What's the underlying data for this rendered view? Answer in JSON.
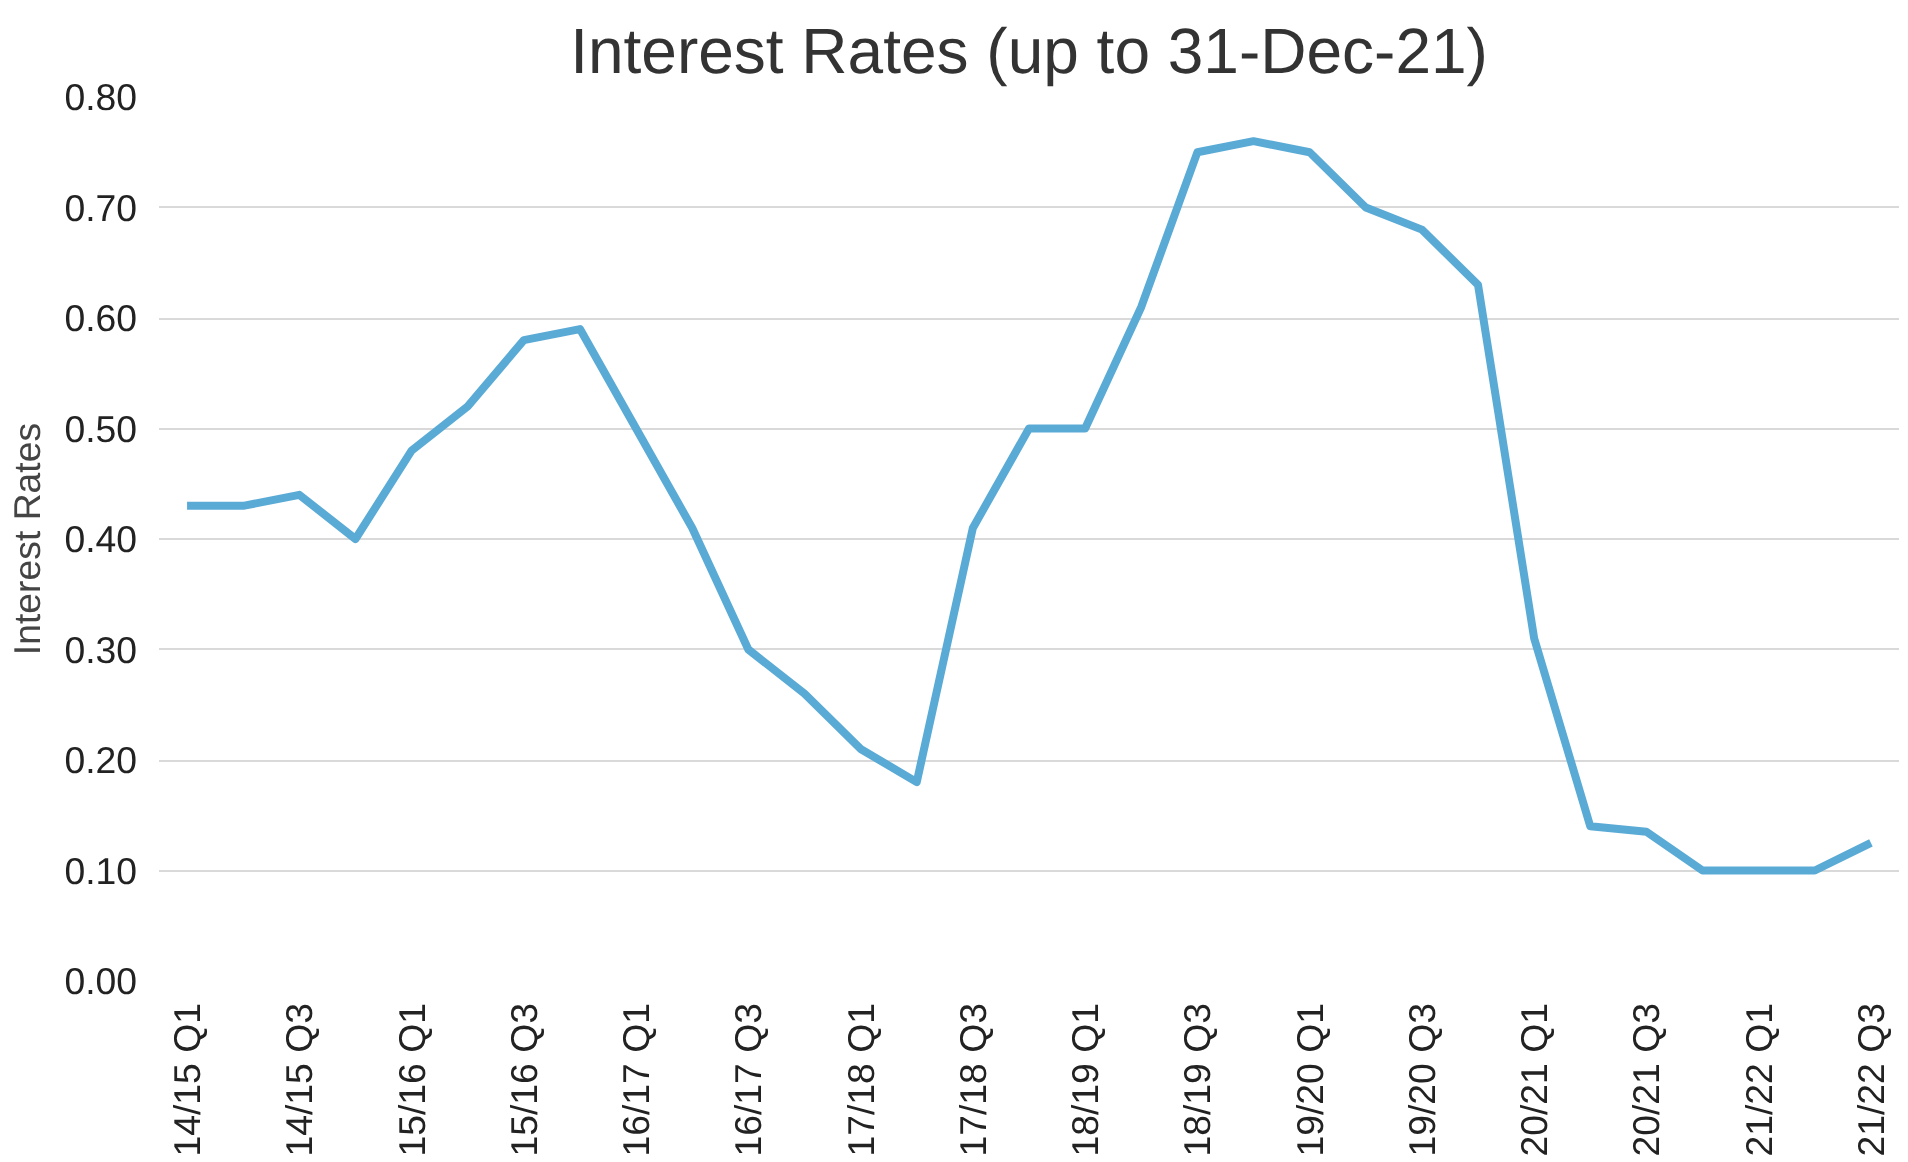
{
  "chart_data": {
    "type": "line",
    "title": "Interest Rates (up to 31-Dec-21)",
    "ylabel": "Interest Rates",
    "categories": [
      "14/15 Q1",
      null,
      "14/15 Q3",
      null,
      "15/16 Q1",
      null,
      "15/16 Q3",
      null,
      "16/17 Q1",
      null,
      "16/17 Q3",
      null,
      "17/18 Q1",
      null,
      "17/18 Q3",
      null,
      "18/19 Q1",
      null,
      "18/19 Q3",
      null,
      "19/20 Q1",
      null,
      "19/20 Q3",
      null,
      "20/21 Q1",
      null,
      "20/21 Q3",
      null,
      "21/22 Q1",
      null,
      "21/22 Q3"
    ],
    "series": [
      {
        "color": "#5aaad6",
        "values": [
          0.43,
          0.43,
          0.44,
          0.4,
          0.48,
          0.52,
          0.58,
          0.59,
          0.5,
          0.41,
          0.3,
          0.26,
          0.21,
          0.18,
          0.41,
          0.5,
          0.5,
          0.61,
          0.75,
          0.76,
          0.75,
          0.7,
          0.68,
          0.63,
          0.31,
          0.14,
          0.135,
          0.1,
          0.1,
          0.1,
          0.125
        ]
      }
    ],
    "ylim": [
      0,
      0.8
    ],
    "yticks": [
      {
        "value": 0,
        "label": "0.00"
      },
      {
        "value": 0.1,
        "label": "0.10"
      },
      {
        "value": 0.2,
        "label": "0.20"
      },
      {
        "value": 0.3,
        "label": "0.30"
      },
      {
        "value": 0.4,
        "label": "0.40"
      },
      {
        "value": 0.5,
        "label": "0.50"
      },
      {
        "value": 0.6,
        "label": "0.60"
      },
      {
        "value": 0.7,
        "label": "0.70"
      },
      {
        "value": 0.8,
        "label": "0.80"
      }
    ],
    "grid": "y",
    "marker": "none",
    "line_style": "solid"
  }
}
